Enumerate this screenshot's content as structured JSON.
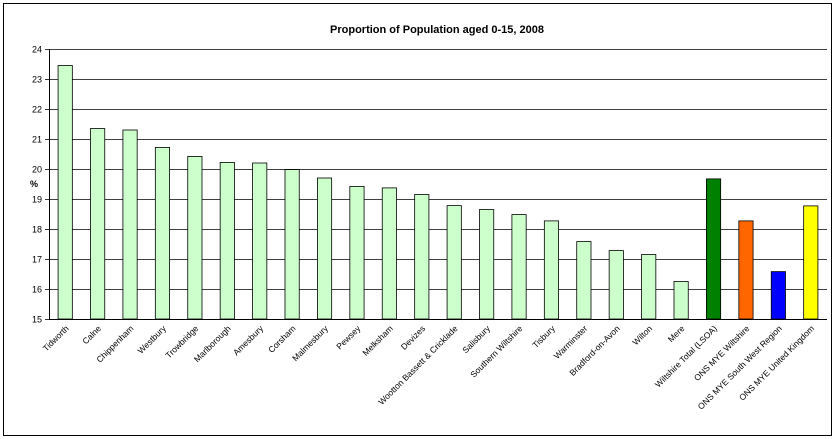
{
  "chart_data": {
    "type": "bar",
    "title": "Proportion of Population aged 0-15, 2008",
    "xlabel": "",
    "ylabel": "%",
    "ylim": [
      15,
      24
    ],
    "yticks": [
      15,
      16,
      17,
      18,
      19,
      20,
      21,
      22,
      23,
      24
    ],
    "grid": true,
    "legend": "none",
    "categories": [
      "Tidworth",
      "Calne",
      "Chippenham",
      "Westbury",
      "Trowbridge",
      "Marlborough",
      "Amesbury",
      "Corsham",
      "Malmesbury",
      "Pewsey",
      "Melksham",
      "Devizes",
      "Wootton Bassett & Cricklade",
      "Salisbury",
      "Southern Wiltshire",
      "Tisbury",
      "Warminster",
      "Bradford-on-Avon",
      "Wilton",
      "Mere",
      "Wiltshire Total (LSOA)",
      "ONS MYE Wiltshire",
      "ONS MYE South West Region",
      "ONS MYE United Kingdom"
    ],
    "values": [
      23.45,
      21.35,
      21.3,
      20.72,
      20.42,
      20.22,
      20.2,
      19.98,
      19.7,
      19.42,
      19.37,
      19.15,
      18.78,
      18.65,
      18.48,
      18.27,
      17.58,
      17.28,
      17.15,
      16.25,
      19.67,
      18.27,
      16.58,
      18.77
    ],
    "colors": [
      "#ccffcc",
      "#ccffcc",
      "#ccffcc",
      "#ccffcc",
      "#ccffcc",
      "#ccffcc",
      "#ccffcc",
      "#ccffcc",
      "#ccffcc",
      "#ccffcc",
      "#ccffcc",
      "#ccffcc",
      "#ccffcc",
      "#ccffcc",
      "#ccffcc",
      "#ccffcc",
      "#ccffcc",
      "#ccffcc",
      "#ccffcc",
      "#ccffcc",
      "#008000",
      "#ff6600",
      "#0000ff",
      "#ffff00"
    ]
  }
}
